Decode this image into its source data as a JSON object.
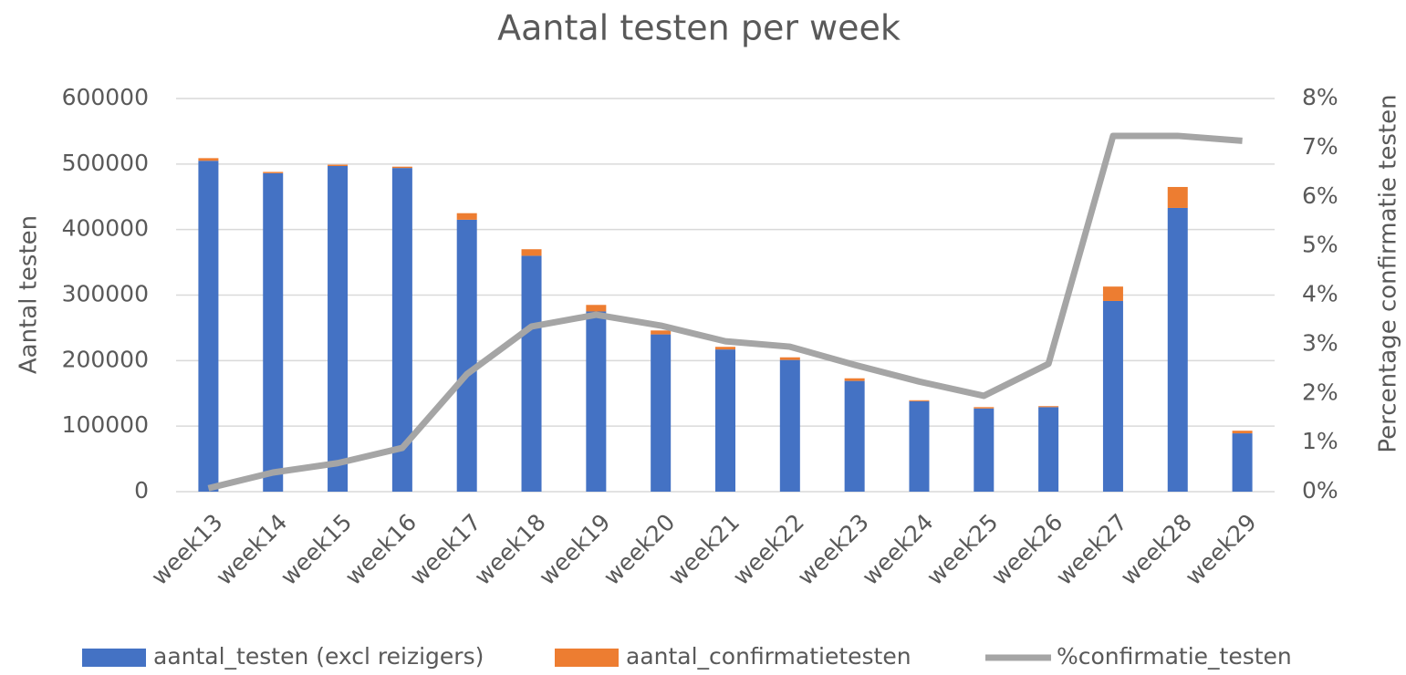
{
  "chart_data": {
    "type": "bar_line",
    "title": "Aantal testen per week",
    "y_label": "Aantal testen",
    "y2_label": "Percentage confirmatie testen",
    "categories": [
      "week13",
      "week14",
      "week15",
      "week16",
      "week17",
      "week18",
      "week19",
      "week20",
      "week21",
      "week22",
      "week23",
      "week24",
      "week25",
      "week26",
      "week27",
      "week28",
      "week29"
    ],
    "series": [
      {
        "name": "aantal_testen (excl reizigers)",
        "color": "#4472c4",
        "type": "bar",
        "stack": true,
        "values": [
          505000,
          486000,
          497000,
          494000,
          415000,
          360000,
          275000,
          240000,
          217000,
          201000,
          169000,
          138000,
          127000,
          129000,
          291000,
          433000,
          89000
        ]
      },
      {
        "name": "aantal_confirmatietesten",
        "color": "#ed7d31",
        "type": "bar",
        "stack": true,
        "values": [
          4000,
          2000,
          2000,
          2000,
          10000,
          10000,
          10000,
          6000,
          4000,
          4000,
          4000,
          1500,
          2000,
          1500,
          22000,
          32000,
          4000
        ]
      },
      {
        "name": "%confirmatie_testen",
        "color": "#a5a5a5",
        "type": "line",
        "axis": "y2",
        "values": [
          0.07,
          0.39,
          0.58,
          0.89,
          2.39,
          3.36,
          3.6,
          3.38,
          3.06,
          2.95,
          2.58,
          2.24,
          1.95,
          2.6,
          7.24,
          7.24,
          7.14
        ]
      }
    ],
    "ylim": [
      0,
      600000
    ],
    "yticks": [
      0,
      100000,
      200000,
      300000,
      400000,
      500000,
      600000
    ],
    "y2lim": [
      0,
      8
    ],
    "y2ticks": [
      {
        "value": 0,
        "label": "0%"
      },
      {
        "value": 1,
        "label": "1%"
      },
      {
        "value": 2,
        "label": "2%"
      },
      {
        "value": 3,
        "label": "3%"
      },
      {
        "value": 4,
        "label": "4%"
      },
      {
        "value": 5,
        "label": "5%"
      },
      {
        "value": 6,
        "label": "6%"
      },
      {
        "value": 7,
        "label": "7%"
      },
      {
        "value": 8,
        "label": "8%"
      }
    ],
    "grid": true,
    "legend": "bottom"
  }
}
